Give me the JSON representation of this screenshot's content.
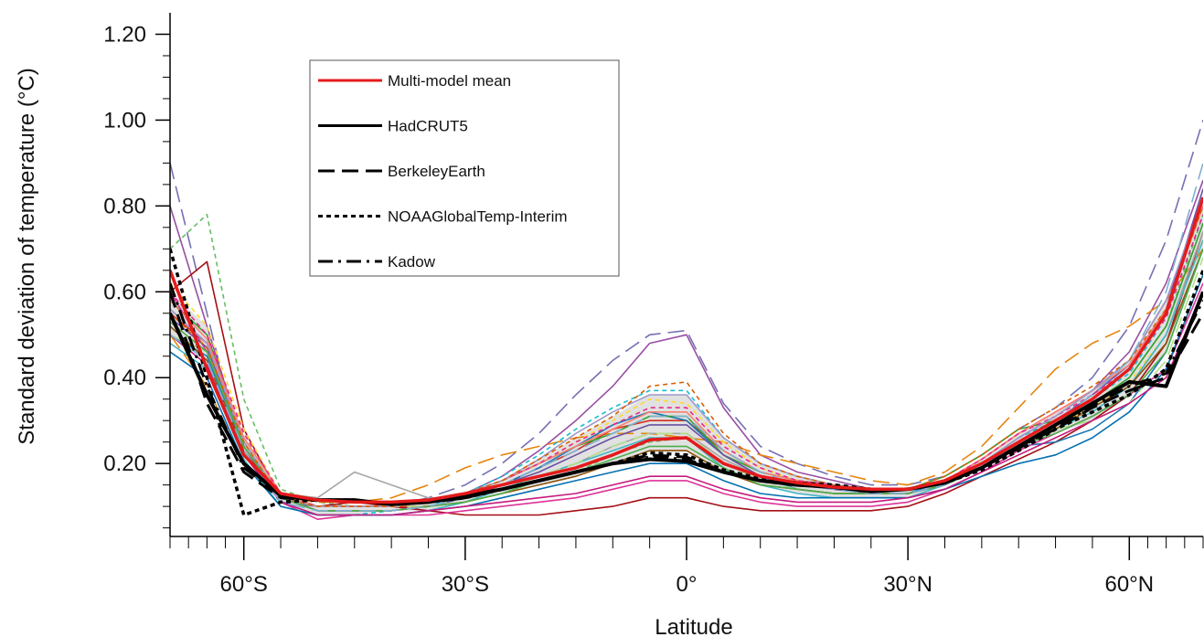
{
  "chart_data": {
    "type": "line",
    "xlabel": "Latitude",
    "ylabel": "Standard deviation of temperature (°C)",
    "xlim": [
      -70,
      70
    ],
    "ylim": [
      0.03,
      1.25
    ],
    "grid": false,
    "legend_position": "top-left",
    "x_ticks": [
      {
        "value": -60,
        "label": "60°S"
      },
      {
        "value": -30,
        "label": "30°S"
      },
      {
        "value": 0,
        "label": "0°"
      },
      {
        "value": 30,
        "label": "30°N"
      },
      {
        "value": 60,
        "label": "60°N"
      }
    ],
    "y_ticks": [
      {
        "value": 0.2,
        "label": "0.20"
      },
      {
        "value": 0.4,
        "label": "0.40"
      },
      {
        "value": 0.6,
        "label": "0.60"
      },
      {
        "value": 0.8,
        "label": "0.80"
      },
      {
        "value": 1.0,
        "label": "1.00"
      },
      {
        "value": 1.2,
        "label": "1.20"
      }
    ],
    "x": [
      -70,
      -65,
      -60,
      -55,
      -50,
      -45,
      -40,
      -35,
      -30,
      -25,
      -20,
      -15,
      -10,
      -5,
      0,
      5,
      10,
      15,
      20,
      25,
      30,
      35,
      40,
      45,
      50,
      55,
      60,
      65,
      70
    ],
    "series": [
      {
        "name": "Multi-model mean",
        "color": "#e41a1c",
        "dash": "solid",
        "width": 3.5,
        "values": [
          0.65,
          0.42,
          0.22,
          0.13,
          0.115,
          0.11,
          0.11,
          0.115,
          0.13,
          0.15,
          0.17,
          0.19,
          0.22,
          0.255,
          0.26,
          0.2,
          0.17,
          0.155,
          0.145,
          0.14,
          0.14,
          0.16,
          0.2,
          0.25,
          0.3,
          0.35,
          0.42,
          0.55,
          0.82
        ]
      },
      {
        "name": "HadCRUT5",
        "color": "#000000",
        "dash": "solid",
        "width": 4,
        "values": [
          0.55,
          0.36,
          0.2,
          0.125,
          0.115,
          0.115,
          0.105,
          0.11,
          0.125,
          0.14,
          0.16,
          0.18,
          0.2,
          0.21,
          0.205,
          0.18,
          0.16,
          0.15,
          0.145,
          0.135,
          0.14,
          0.155,
          0.19,
          0.24,
          0.29,
          0.34,
          0.39,
          0.38,
          0.6
        ]
      },
      {
        "name": "BerkeleyEarth",
        "color": "#000000",
        "dash": "long-dash",
        "width": 3,
        "values": [
          0.6,
          0.34,
          0.18,
          0.12,
          0.115,
          0.115,
          0.105,
          0.11,
          0.12,
          0.14,
          0.16,
          0.18,
          0.2,
          0.22,
          0.215,
          0.18,
          0.16,
          0.15,
          0.145,
          0.14,
          0.14,
          0.155,
          0.19,
          0.24,
          0.28,
          0.33,
          0.37,
          0.4,
          0.55
        ]
      },
      {
        "name": "NOAAGlobalTemp-Interim",
        "color": "#000000",
        "dash": "short-dash",
        "width": 3.5,
        "values": [
          0.7,
          0.4,
          0.08,
          0.11,
          0.115,
          0.115,
          0.105,
          0.11,
          0.12,
          0.14,
          0.16,
          0.18,
          0.2,
          0.225,
          0.22,
          0.185,
          0.165,
          0.155,
          0.15,
          0.14,
          0.14,
          0.155,
          0.185,
          0.23,
          0.28,
          0.32,
          0.36,
          0.42,
          0.65
        ]
      },
      {
        "name": "Kadow",
        "color": "#000000",
        "dash": "dash-dot",
        "width": 3,
        "values": [
          0.62,
          0.38,
          0.19,
          0.125,
          0.115,
          0.115,
          0.105,
          0.11,
          0.12,
          0.14,
          0.16,
          0.18,
          0.2,
          0.215,
          0.21,
          0.18,
          0.16,
          0.15,
          0.145,
          0.14,
          0.14,
          0.155,
          0.19,
          0.235,
          0.285,
          0.335,
          0.38,
          0.41,
          0.58
        ]
      }
    ],
    "model_ensemble": [
      {
        "color": "#7570b3",
        "dash": "long-dash",
        "values": [
          0.9,
          0.55,
          0.2,
          0.11,
          0.1,
          0.1,
          0.1,
          0.12,
          0.15,
          0.2,
          0.27,
          0.36,
          0.44,
          0.5,
          0.51,
          0.34,
          0.24,
          0.2,
          0.17,
          0.15,
          0.15,
          0.17,
          0.22,
          0.28,
          0.33,
          0.4,
          0.52,
          0.72,
          1.0
        ]
      },
      {
        "color": "#984ea3",
        "dash": "solid",
        "values": [
          0.8,
          0.52,
          0.24,
          0.12,
          0.1,
          0.1,
          0.1,
          0.11,
          0.13,
          0.17,
          0.23,
          0.3,
          0.38,
          0.48,
          0.5,
          0.33,
          0.22,
          0.18,
          0.16,
          0.14,
          0.14,
          0.16,
          0.2,
          0.26,
          0.31,
          0.37,
          0.46,
          0.62,
          0.86
        ]
      },
      {
        "color": "#66bd63",
        "dash": "short-dash",
        "values": [
          0.7,
          0.78,
          0.35,
          0.14,
          0.11,
          0.1,
          0.1,
          0.1,
          0.12,
          0.14,
          0.16,
          0.18,
          0.22,
          0.25,
          0.26,
          0.2,
          0.17,
          0.15,
          0.14,
          0.14,
          0.14,
          0.16,
          0.2,
          0.26,
          0.3,
          0.34,
          0.4,
          0.52,
          0.78
        ]
      },
      {
        "color": "#a50f15",
        "dash": "solid",
        "values": [
          0.6,
          0.67,
          0.28,
          0.12,
          0.1,
          0.11,
          0.1,
          0.09,
          0.08,
          0.08,
          0.08,
          0.09,
          0.1,
          0.12,
          0.12,
          0.1,
          0.09,
          0.09,
          0.09,
          0.09,
          0.1,
          0.13,
          0.17,
          0.21,
          0.25,
          0.3,
          0.36,
          0.48,
          0.74
        ]
      },
      {
        "color": "#e6850e",
        "dash": "long-dash",
        "values": [
          0.5,
          0.38,
          0.2,
          0.12,
          0.11,
          0.11,
          0.12,
          0.15,
          0.19,
          0.22,
          0.24,
          0.26,
          0.27,
          0.27,
          0.26,
          0.25,
          0.22,
          0.2,
          0.18,
          0.16,
          0.15,
          0.18,
          0.24,
          0.33,
          0.42,
          0.48,
          0.52,
          0.58,
          0.7
        ]
      },
      {
        "color": "#d7301f",
        "dash": "solid",
        "values": [
          0.55,
          0.48,
          0.26,
          0.13,
          0.1,
          0.1,
          0.1,
          0.1,
          0.12,
          0.15,
          0.19,
          0.23,
          0.28,
          0.3,
          0.3,
          0.23,
          0.18,
          0.16,
          0.15,
          0.14,
          0.14,
          0.16,
          0.21,
          0.27,
          0.32,
          0.37,
          0.44,
          0.58,
          0.8
        ]
      },
      {
        "color": "#1f78b4",
        "dash": "solid",
        "values": [
          0.5,
          0.45,
          0.24,
          0.12,
          0.09,
          0.09,
          0.09,
          0.1,
          0.12,
          0.15,
          0.19,
          0.24,
          0.29,
          0.32,
          0.3,
          0.22,
          0.17,
          0.14,
          0.13,
          0.13,
          0.13,
          0.16,
          0.2,
          0.24,
          0.25,
          0.28,
          0.34,
          0.46,
          0.7
        ]
      },
      {
        "color": "#33a02c",
        "dash": "solid",
        "values": [
          0.58,
          0.5,
          0.25,
          0.12,
          0.1,
          0.1,
          0.1,
          0.11,
          0.13,
          0.16,
          0.2,
          0.24,
          0.27,
          0.31,
          0.31,
          0.22,
          0.18,
          0.16,
          0.15,
          0.14,
          0.14,
          0.17,
          0.22,
          0.28,
          0.3,
          0.34,
          0.4,
          0.52,
          0.76
        ]
      },
      {
        "color": "#17becf",
        "dash": "short-dash",
        "values": [
          0.52,
          0.44,
          0.22,
          0.11,
          0.08,
          0.08,
          0.09,
          0.1,
          0.13,
          0.17,
          0.22,
          0.28,
          0.33,
          0.37,
          0.37,
          0.26,
          0.2,
          0.17,
          0.15,
          0.14,
          0.14,
          0.16,
          0.2,
          0.26,
          0.3,
          0.35,
          0.41,
          0.54,
          0.78
        ]
      },
      {
        "color": "#dd3497",
        "dash": "solid",
        "values": [
          0.6,
          0.46,
          0.24,
          0.11,
          0.07,
          0.08,
          0.08,
          0.08,
          0.09,
          0.1,
          0.11,
          0.12,
          0.14,
          0.16,
          0.16,
          0.13,
          0.11,
          0.1,
          0.1,
          0.1,
          0.11,
          0.14,
          0.18,
          0.23,
          0.27,
          0.31,
          0.36,
          0.42,
          0.62
        ]
      },
      {
        "color": "#ffd92f",
        "dash": "short-dash",
        "values": [
          0.62,
          0.52,
          0.28,
          0.13,
          0.1,
          0.1,
          0.1,
          0.11,
          0.13,
          0.16,
          0.2,
          0.25,
          0.3,
          0.35,
          0.34,
          0.25,
          0.19,
          0.16,
          0.15,
          0.14,
          0.14,
          0.16,
          0.2,
          0.25,
          0.29,
          0.33,
          0.39,
          0.5,
          0.72
        ]
      },
      {
        "color": "#a6a6a6",
        "dash": "solid",
        "values": [
          0.56,
          0.48,
          0.26,
          0.13,
          0.12,
          0.18,
          0.15,
          0.12,
          0.12,
          0.14,
          0.17,
          0.2,
          0.24,
          0.27,
          0.27,
          0.21,
          0.17,
          0.15,
          0.14,
          0.13,
          0.13,
          0.15,
          0.19,
          0.24,
          0.28,
          0.33,
          0.38,
          0.5,
          0.74
        ]
      },
      {
        "color": "#6a51a3",
        "dash": "solid",
        "values": [
          0.54,
          0.47,
          0.25,
          0.12,
          0.09,
          0.09,
          0.09,
          0.1,
          0.12,
          0.15,
          0.18,
          0.22,
          0.26,
          0.29,
          0.29,
          0.22,
          0.17,
          0.15,
          0.14,
          0.13,
          0.13,
          0.15,
          0.19,
          0.25,
          0.3,
          0.36,
          0.43,
          0.56,
          0.84
        ]
      },
      {
        "color": "#41b6c4",
        "dash": "solid",
        "values": [
          0.48,
          0.42,
          0.21,
          0.1,
          0.08,
          0.08,
          0.08,
          0.09,
          0.11,
          0.14,
          0.17,
          0.2,
          0.23,
          0.26,
          0.26,
          0.19,
          0.15,
          0.13,
          0.12,
          0.12,
          0.12,
          0.15,
          0.19,
          0.24,
          0.28,
          0.32,
          0.38,
          0.5,
          0.72
        ]
      },
      {
        "color": "#b2df8a",
        "dash": "long-dash",
        "values": [
          0.5,
          0.46,
          0.24,
          0.12,
          0.1,
          0.1,
          0.1,
          0.1,
          0.12,
          0.14,
          0.17,
          0.2,
          0.24,
          0.27,
          0.27,
          0.2,
          0.16,
          0.14,
          0.13,
          0.13,
          0.13,
          0.15,
          0.19,
          0.24,
          0.28,
          0.3,
          0.34,
          0.44,
          0.68
        ]
      },
      {
        "color": "#fb8072",
        "dash": "solid",
        "values": [
          0.58,
          0.49,
          0.26,
          0.13,
          0.1,
          0.1,
          0.1,
          0.11,
          0.13,
          0.16,
          0.2,
          0.24,
          0.28,
          0.32,
          0.32,
          0.23,
          0.18,
          0.16,
          0.15,
          0.14,
          0.14,
          0.16,
          0.21,
          0.27,
          0.32,
          0.37,
          0.43,
          0.56,
          0.8
        ]
      },
      {
        "color": "#8c510a",
        "dash": "solid",
        "values": [
          0.52,
          0.44,
          0.23,
          0.12,
          0.09,
          0.09,
          0.09,
          0.1,
          0.11,
          0.13,
          0.15,
          0.17,
          0.2,
          0.23,
          0.23,
          0.18,
          0.15,
          0.14,
          0.13,
          0.13,
          0.13,
          0.15,
          0.19,
          0.24,
          0.28,
          0.33,
          0.38,
          0.48,
          0.7
        ]
      },
      {
        "color": "#e7298a",
        "dash": "short-dash",
        "values": [
          0.6,
          0.5,
          0.27,
          0.13,
          0.1,
          0.1,
          0.1,
          0.11,
          0.13,
          0.16,
          0.2,
          0.25,
          0.29,
          0.33,
          0.33,
          0.24,
          0.19,
          0.16,
          0.15,
          0.14,
          0.14,
          0.16,
          0.21,
          0.27,
          0.31,
          0.36,
          0.42,
          0.54,
          0.78
        ]
      },
      {
        "color": "#0570b0",
        "dash": "solid",
        "values": [
          0.46,
          0.4,
          0.2,
          0.1,
          0.08,
          0.08,
          0.08,
          0.09,
          0.1,
          0.12,
          0.14,
          0.16,
          0.18,
          0.2,
          0.2,
          0.16,
          0.13,
          0.12,
          0.12,
          0.12,
          0.12,
          0.14,
          0.17,
          0.2,
          0.22,
          0.26,
          0.32,
          0.42,
          0.64
        ]
      },
      {
        "color": "#9e9ac8",
        "dash": "solid",
        "values": [
          0.56,
          0.48,
          0.25,
          0.12,
          0.1,
          0.1,
          0.1,
          0.11,
          0.13,
          0.16,
          0.21,
          0.27,
          0.32,
          0.36,
          0.36,
          0.26,
          0.2,
          0.17,
          0.15,
          0.14,
          0.14,
          0.16,
          0.2,
          0.26,
          0.31,
          0.37,
          0.44,
          0.58,
          0.82
        ]
      },
      {
        "color": "#c51b7d",
        "dash": "solid",
        "values": [
          0.5,
          0.43,
          0.22,
          0.11,
          0.08,
          0.08,
          0.08,
          0.09,
          0.1,
          0.11,
          0.12,
          0.13,
          0.15,
          0.17,
          0.17,
          0.14,
          0.12,
          0.11,
          0.11,
          0.11,
          0.12,
          0.14,
          0.18,
          0.22,
          0.26,
          0.3,
          0.34,
          0.4,
          0.6
        ]
      },
      {
        "color": "#d95f02",
        "dash": "short-dash",
        "values": [
          0.55,
          0.47,
          0.25,
          0.12,
          0.1,
          0.1,
          0.1,
          0.11,
          0.13,
          0.16,
          0.21,
          0.26,
          0.31,
          0.38,
          0.39,
          0.27,
          0.2,
          0.17,
          0.15,
          0.14,
          0.14,
          0.17,
          0.22,
          0.28,
          0.33,
          0.38,
          0.44,
          0.56,
          0.8
        ]
      },
      {
        "color": "#4daf4a",
        "dash": "solid",
        "values": [
          0.53,
          0.46,
          0.24,
          0.12,
          0.09,
          0.09,
          0.09,
          0.1,
          0.11,
          0.13,
          0.16,
          0.18,
          0.21,
          0.24,
          0.24,
          0.19,
          0.15,
          0.14,
          0.13,
          0.13,
          0.13,
          0.15,
          0.19,
          0.24,
          0.27,
          0.31,
          0.36,
          0.46,
          0.7
        ]
      },
      {
        "color": "#80b1d3",
        "dash": "long-dash",
        "values": [
          0.5,
          0.44,
          0.23,
          0.11,
          0.09,
          0.09,
          0.09,
          0.1,
          0.12,
          0.15,
          0.19,
          0.23,
          0.27,
          0.31,
          0.31,
          0.23,
          0.18,
          0.15,
          0.14,
          0.13,
          0.13,
          0.15,
          0.19,
          0.25,
          0.3,
          0.36,
          0.44,
          0.6,
          0.9
        ]
      }
    ],
    "legend": {
      "entries": [
        {
          "label": "Multi-model mean",
          "color": "#e41a1c",
          "dash": "solid"
        },
        {
          "label": "HadCRUT5",
          "color": "#000000",
          "dash": "solid"
        },
        {
          "label": "BerkeleyEarth",
          "color": "#000000",
          "dash": "long-dash"
        },
        {
          "label": "NOAAGlobalTemp-Interim",
          "color": "#000000",
          "dash": "short-dash"
        },
        {
          "label": "Kadow",
          "color": "#000000",
          "dash": "dash-dot"
        }
      ]
    }
  }
}
